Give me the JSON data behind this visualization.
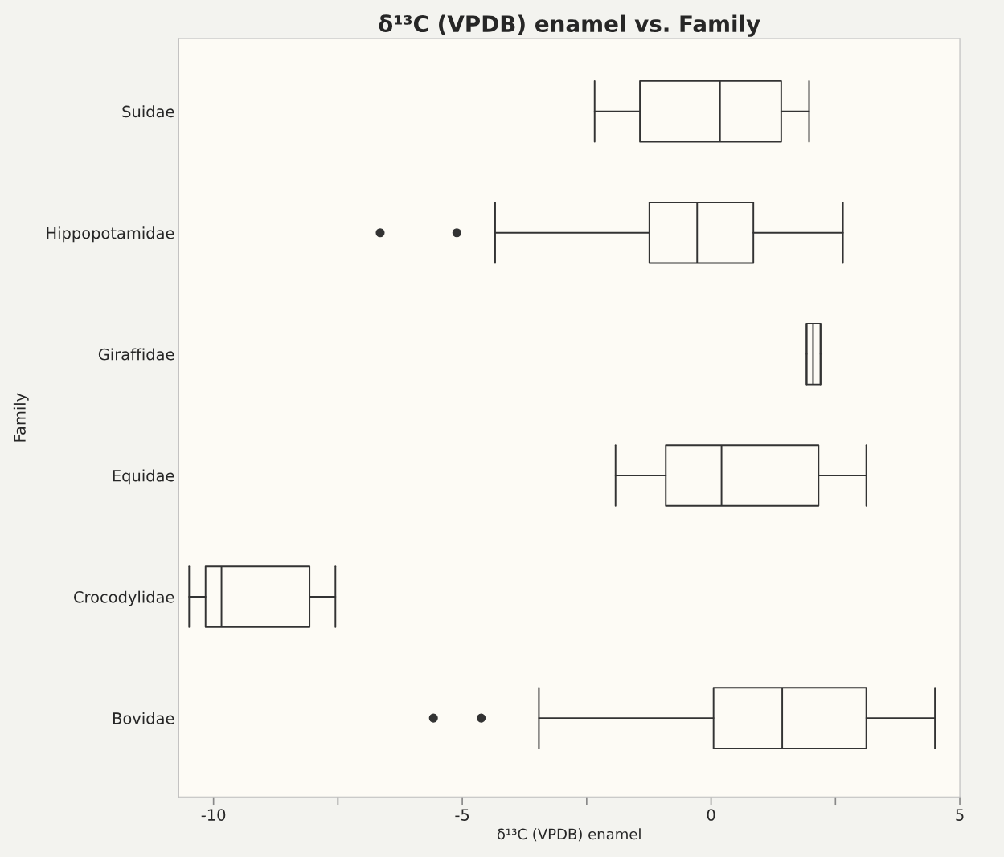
{
  "chart_data": {
    "type": "box",
    "title": "δ¹³C (VPDB) enamel vs. Family",
    "xlabel": "δ¹³C (VPDB) enamel",
    "ylabel": "Family",
    "orientation": "horizontal",
    "categories": [
      "Suidae",
      "Hippopotamidae",
      "Giraffidae",
      "Equidae",
      "Crocodylidae",
      "Bovidae"
    ],
    "boxes": [
      {
        "low": -2.34,
        "q1": -1.43,
        "median": 0.18,
        "q3": 1.41,
        "high": 1.97
      },
      {
        "low": -4.34,
        "q1": -1.24,
        "median": -0.28,
        "q3": 0.85,
        "high": 2.65,
        "outliers": [
          -6.65,
          -5.11
        ]
      },
      {
        "low": 1.92,
        "q1": 1.92,
        "median": 2.05,
        "q3": 2.2,
        "high": 2.2
      },
      {
        "low": -1.92,
        "q1": -0.91,
        "median": 0.21,
        "q3": 2.16,
        "high": 3.12
      },
      {
        "low": -10.49,
        "q1": -10.16,
        "median": -9.84,
        "q3": -8.07,
        "high": -7.55
      },
      {
        "low": -3.46,
        "q1": 0.05,
        "median": 1.43,
        "q3": 3.12,
        "high": 4.5,
        "outliers": [
          -5.58,
          -4.62
        ]
      }
    ],
    "color": "#333333",
    "xlim": [
      -10.7,
      5
    ],
    "xticks": [
      -10,
      {
        "value": -7.5,
        "label": null
      },
      -5,
      {
        "value": -2.5,
        "label": null
      },
      0,
      {
        "value": 2.5,
        "label": null
      },
      5
    ],
    "grid": false
  }
}
